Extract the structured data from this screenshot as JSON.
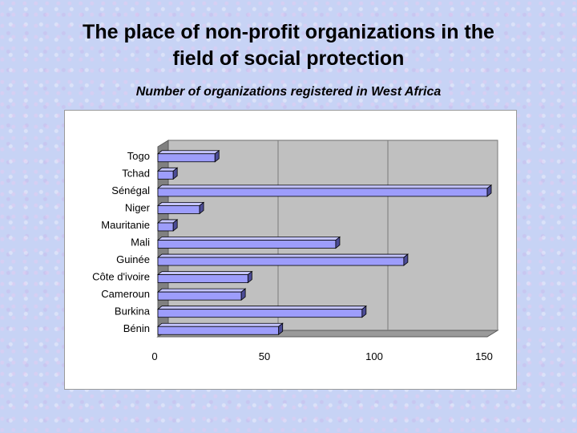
{
  "slide": {
    "title_line1": "The place of non-profit organizations in the",
    "title_line2": "field of social protection"
  },
  "chart_data": {
    "type": "bar",
    "orientation": "horizontal",
    "title": "Number of organizations registered in West Africa",
    "categories": [
      "Bénin",
      "Burkina",
      "Cameroun",
      "Côte d'ivoire",
      "Guinée",
      "Mali",
      "Mauritanie",
      "Niger",
      "Sénégal",
      "Tchad",
      "Togo"
    ],
    "values": [
      55,
      93,
      38,
      41,
      112,
      81,
      7,
      19,
      150,
      7,
      26
    ],
    "xlim": [
      0,
      150
    ],
    "xticks": [
      0,
      50,
      100,
      150
    ],
    "grid": true,
    "style_3d": true,
    "colors": {
      "bar_face": "#9d9dfb",
      "bar_top": "#c4c4ff",
      "bar_side": "#4c4c96",
      "plot_bg": "#c0c0c0",
      "floor": "#808080"
    }
  }
}
